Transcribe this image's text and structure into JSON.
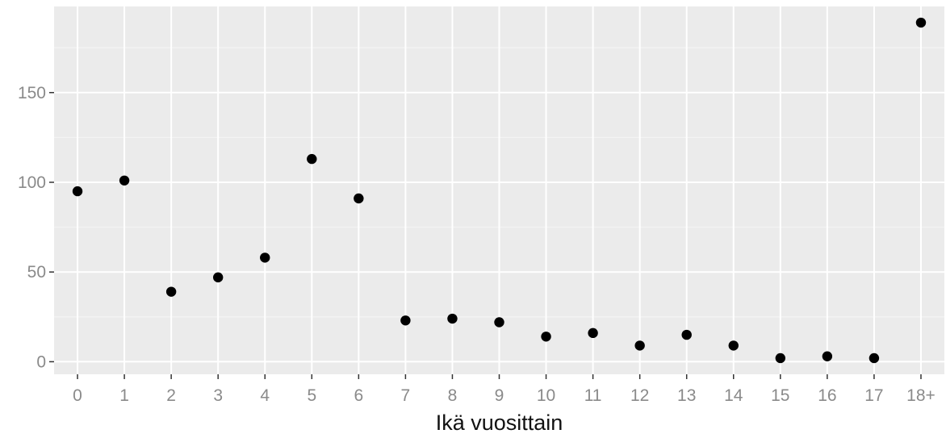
{
  "chart_data": {
    "type": "scatter",
    "title": "",
    "xlabel": "Ikä vuosittain",
    "ylabel": "",
    "categories": [
      "0",
      "1",
      "2",
      "3",
      "4",
      "5",
      "6",
      "7",
      "8",
      "9",
      "10",
      "11",
      "12",
      "13",
      "14",
      "15",
      "16",
      "17",
      "18+"
    ],
    "values": [
      95,
      101,
      39,
      47,
      58,
      113,
      91,
      23,
      24,
      22,
      14,
      16,
      9,
      15,
      9,
      2,
      3,
      2,
      189
    ],
    "yticks": [
      0,
      50,
      100,
      150
    ],
    "ytick_labels": [
      "0",
      "50",
      "100",
      "150"
    ],
    "ylim": [
      -7,
      198
    ],
    "grid": true,
    "legend": "none",
    "colors": {
      "panel_background": "#ebebeb",
      "grid_major": "#ffffff",
      "point": "#000000",
      "tick_text": "#8a8a8a",
      "axis_title": "#111111"
    }
  }
}
